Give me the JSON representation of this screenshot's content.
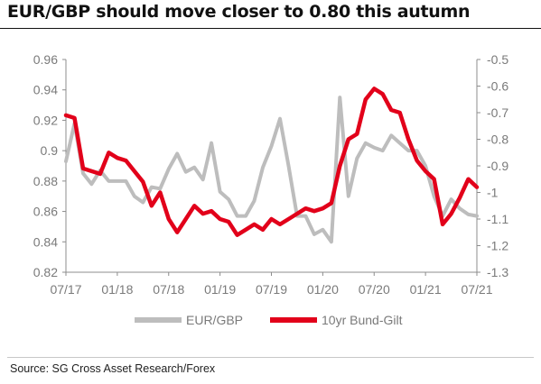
{
  "title": "EUR/GBP should move closer to 0.80 this autumn",
  "source": "Source: SG Cross Asset Research/Forex",
  "colors": {
    "eurgbp": "#bdbdbd",
    "bund_gilt": "#e2001a",
    "axis": "#8c8c8c",
    "text": "#7a7a7a"
  },
  "chart_data": {
    "type": "line",
    "x_ticks": [
      "07/17",
      "01/18",
      "07/18",
      "01/19",
      "07/19",
      "01/20",
      "07/20",
      "01/21",
      "07/21"
    ],
    "x_range": [
      "2017-07",
      "2021-07"
    ],
    "y_left": {
      "range": [
        0.82,
        0.96
      ],
      "ticks": [
        "0.96",
        "0.94",
        "0.92",
        "0.9",
        "0.88",
        "0.86",
        "0.84",
        "0.82"
      ]
    },
    "y_right": {
      "range": [
        -1.3,
        -0.5
      ],
      "ticks": [
        "-0.5",
        "-0.6",
        "-0.7",
        "-0.8",
        "-0.9",
        "-1",
        "-1.1",
        "-1.2",
        "-1.3"
      ]
    },
    "grid": false,
    "legend_position": "bottom",
    "series": [
      {
        "name": "EUR/GBP",
        "axis": "left",
        "points": [
          [
            "2017-07",
            0.893
          ],
          [
            "2017-08",
            0.918
          ],
          [
            "2017-09",
            0.885
          ],
          [
            "2017-10",
            0.878
          ],
          [
            "2017-11",
            0.887
          ],
          [
            "2017-12",
            0.88
          ],
          [
            "2018-01",
            0.88
          ],
          [
            "2018-02",
            0.88
          ],
          [
            "2018-03",
            0.87
          ],
          [
            "2018-04",
            0.866
          ],
          [
            "2018-05",
            0.876
          ],
          [
            "2018-06",
            0.875
          ],
          [
            "2018-07",
            0.888
          ],
          [
            "2018-08",
            0.898
          ],
          [
            "2018-09",
            0.886
          ],
          [
            "2018-10",
            0.889
          ],
          [
            "2018-11",
            0.881
          ],
          [
            "2018-12",
            0.905
          ],
          [
            "2019-01",
            0.873
          ],
          [
            "2019-02",
            0.868
          ],
          [
            "2019-03",
            0.857
          ],
          [
            "2019-04",
            0.857
          ],
          [
            "2019-05",
            0.867
          ],
          [
            "2019-06",
            0.889
          ],
          [
            "2019-07",
            0.903
          ],
          [
            "2019-08",
            0.921
          ],
          [
            "2019-09",
            0.89
          ],
          [
            "2019-10",
            0.857
          ],
          [
            "2019-11",
            0.857
          ],
          [
            "2019-12",
            0.845
          ],
          [
            "2020-01",
            0.848
          ],
          [
            "2020-02",
            0.84
          ],
          [
            "2020-03",
            0.935
          ],
          [
            "2020-04",
            0.87
          ],
          [
            "2020-05",
            0.895
          ],
          [
            "2020-06",
            0.905
          ],
          [
            "2020-07",
            0.902
          ],
          [
            "2020-08",
            0.9
          ],
          [
            "2020-09",
            0.91
          ],
          [
            "2020-10",
            0.905
          ],
          [
            "2020-11",
            0.9
          ],
          [
            "2020-12",
            0.9
          ],
          [
            "2021-01",
            0.89
          ],
          [
            "2021-02",
            0.87
          ],
          [
            "2021-03",
            0.857
          ],
          [
            "2021-04",
            0.868
          ],
          [
            "2021-05",
            0.862
          ],
          [
            "2021-06",
            0.858
          ],
          [
            "2021-07",
            0.857
          ]
        ]
      },
      {
        "name": "10yr Bund-Gilt",
        "axis": "right",
        "points": [
          [
            "2017-07",
            -0.71
          ],
          [
            "2017-08",
            -0.72
          ],
          [
            "2017-09",
            -0.91
          ],
          [
            "2017-10",
            -0.92
          ],
          [
            "2017-11",
            -0.93
          ],
          [
            "2017-12",
            -0.85
          ],
          [
            "2018-01",
            -0.87
          ],
          [
            "2018-02",
            -0.88
          ],
          [
            "2018-03",
            -0.92
          ],
          [
            "2018-04",
            -0.96
          ],
          [
            "2018-05",
            -1.05
          ],
          [
            "2018-06",
            -1.0
          ],
          [
            "2018-07",
            -1.1
          ],
          [
            "2018-08",
            -1.15
          ],
          [
            "2018-09",
            -1.1
          ],
          [
            "2018-10",
            -1.05
          ],
          [
            "2018-11",
            -1.08
          ],
          [
            "2018-12",
            -1.07
          ],
          [
            "2019-01",
            -1.1
          ],
          [
            "2019-02",
            -1.11
          ],
          [
            "2019-03",
            -1.16
          ],
          [
            "2019-04",
            -1.14
          ],
          [
            "2019-05",
            -1.12
          ],
          [
            "2019-06",
            -1.14
          ],
          [
            "2019-07",
            -1.1
          ],
          [
            "2019-08",
            -1.12
          ],
          [
            "2019-09",
            -1.1
          ],
          [
            "2019-10",
            -1.08
          ],
          [
            "2019-11",
            -1.06
          ],
          [
            "2019-12",
            -1.07
          ],
          [
            "2020-01",
            -1.06
          ],
          [
            "2020-02",
            -1.04
          ],
          [
            "2020-03",
            -0.9
          ],
          [
            "2020-04",
            -0.8
          ],
          [
            "2020-05",
            -0.78
          ],
          [
            "2020-06",
            -0.65
          ],
          [
            "2020-07",
            -0.61
          ],
          [
            "2020-08",
            -0.63
          ],
          [
            "2020-09",
            -0.69
          ],
          [
            "2020-10",
            -0.7
          ],
          [
            "2020-11",
            -0.8
          ],
          [
            "2020-12",
            -0.88
          ],
          [
            "2021-01",
            -0.92
          ],
          [
            "2021-02",
            -0.95
          ],
          [
            "2021-03",
            -1.12
          ],
          [
            "2021-04",
            -1.08
          ],
          [
            "2021-05",
            -1.02
          ],
          [
            "2021-06",
            -0.95
          ],
          [
            "2021-07",
            -0.98
          ]
        ]
      }
    ]
  }
}
